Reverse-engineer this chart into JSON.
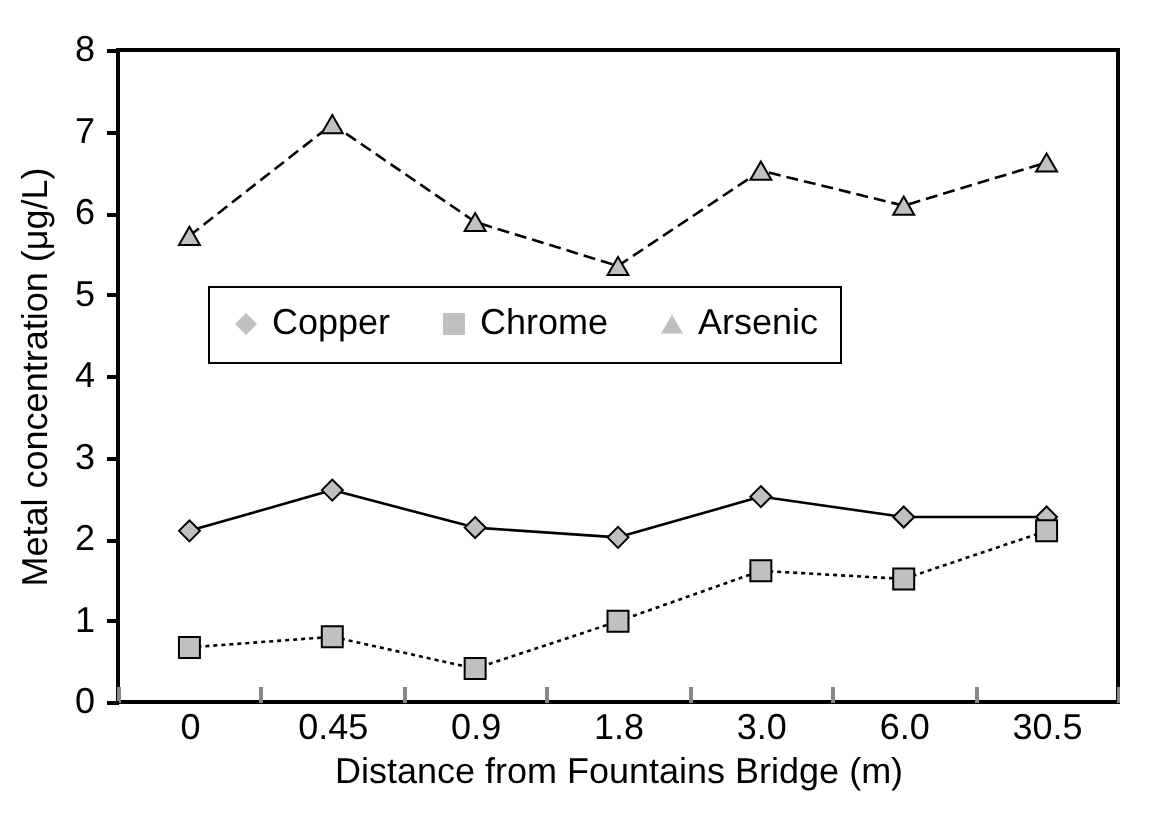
{
  "chart_data": {
    "type": "line",
    "xlabel": "Distance from Fountains Bridge (m)",
    "ylabel": "Metal concentration (μg/L)",
    "categories": [
      "0",
      "0.45",
      "0.9",
      "1.8",
      "3.0",
      "6.0",
      "30.5"
    ],
    "series": [
      {
        "name": "Copper",
        "color": "#000000",
        "marker": "diamond",
        "line_style": "solid",
        "values": [
          2.1,
          2.6,
          2.14,
          2.02,
          2.52,
          2.27,
          2.27
        ]
      },
      {
        "name": "Chrome",
        "color": "#000000",
        "marker": "square",
        "line_style": "dotted",
        "values": [
          0.67,
          0.8,
          0.41,
          0.99,
          1.61,
          1.51,
          2.1
        ]
      },
      {
        "name": "Arsenic",
        "color": "#000000",
        "marker": "triangle",
        "line_style": "dashed",
        "values": [
          5.72,
          7.09,
          5.89,
          5.35,
          6.52,
          6.09,
          6.62
        ]
      }
    ],
    "ylim": [
      0,
      8
    ],
    "yticks": [
      0,
      1,
      2,
      3,
      4,
      5,
      6,
      7,
      8
    ],
    "grid": false,
    "legend": "left"
  }
}
